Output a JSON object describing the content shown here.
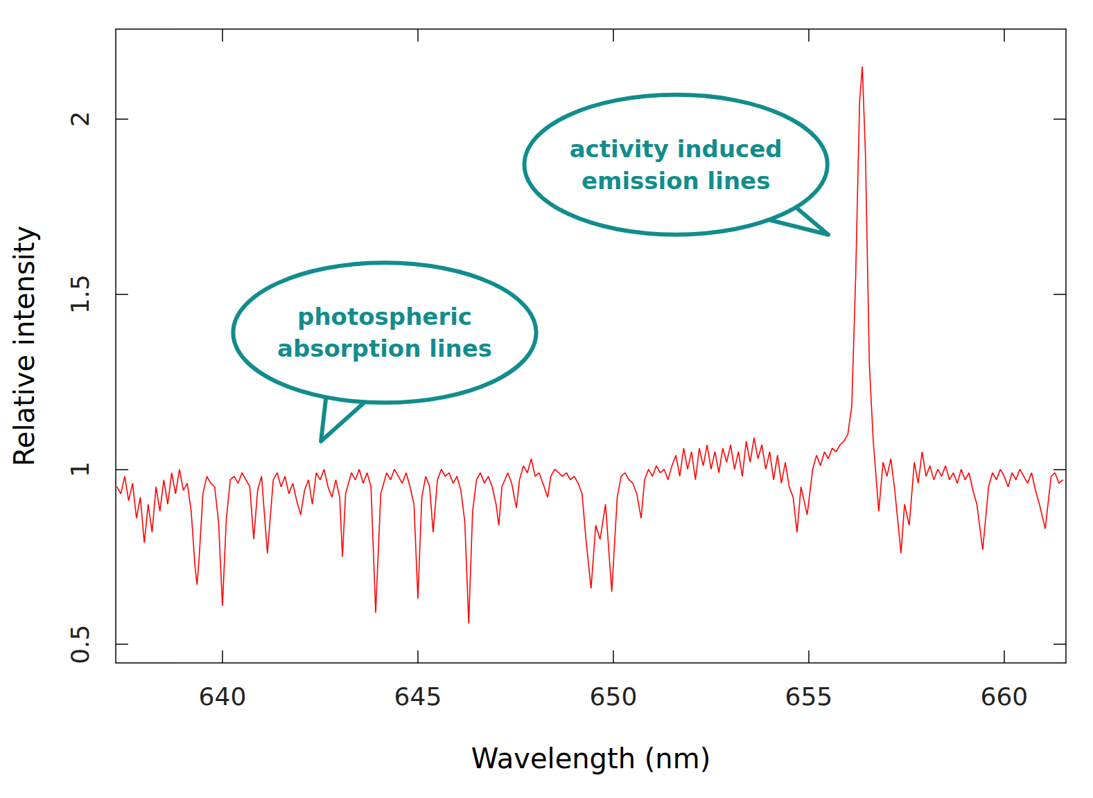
{
  "chart_data": {
    "type": "line",
    "xlabel": "Wavelength (nm)",
    "ylabel": "Relative intensity",
    "xlim": [
      637.27,
      661.58
    ],
    "xticks": [
      640,
      645,
      650,
      655,
      660
    ],
    "ylim": [
      0.447,
      2.257
    ],
    "yticks": [
      0.5,
      1,
      1.5,
      2
    ],
    "grid": false,
    "x": [
      637.3,
      637.4,
      637.5,
      637.6,
      637.7,
      637.8,
      637.9,
      638.0,
      638.1,
      638.2,
      638.3,
      638.4,
      638.5,
      638.6,
      638.7,
      638.8,
      638.9,
      639.0,
      639.1,
      639.2,
      639.3,
      639.35,
      639.4,
      639.5,
      639.6,
      639.7,
      639.8,
      639.9,
      640.0,
      640.1,
      640.2,
      640.3,
      640.4,
      640.5,
      640.6,
      640.7,
      640.8,
      640.9,
      641.0,
      641.15,
      641.3,
      641.4,
      641.5,
      641.6,
      641.7,
      641.8,
      641.9,
      642.0,
      642.1,
      642.2,
      642.3,
      642.4,
      642.5,
      642.6,
      642.7,
      642.8,
      642.9,
      643.0,
      643.07,
      643.15,
      643.3,
      643.4,
      643.5,
      643.6,
      643.7,
      643.8,
      643.92,
      644.05,
      644.2,
      644.3,
      644.4,
      644.5,
      644.6,
      644.7,
      644.8,
      644.9,
      645.0,
      645.1,
      645.2,
      645.3,
      645.39,
      645.5,
      645.6,
      645.7,
      645.8,
      645.9,
      646.0,
      646.1,
      646.2,
      646.3,
      646.4,
      646.5,
      646.6,
      646.7,
      646.8,
      646.9,
      647.0,
      647.07,
      647.15,
      647.3,
      647.4,
      647.52,
      647.6,
      647.7,
      647.8,
      647.9,
      648.0,
      648.1,
      648.2,
      648.32,
      648.4,
      648.5,
      648.6,
      648.7,
      648.8,
      648.9,
      649.0,
      649.1,
      649.2,
      649.3,
      649.43,
      649.55,
      649.66,
      649.8,
      649.96,
      650.1,
      650.2,
      650.3,
      650.4,
      650.5,
      650.6,
      650.71,
      650.8,
      650.9,
      651.0,
      651.1,
      651.2,
      651.3,
      651.4,
      651.5,
      651.6,
      651.7,
      651.8,
      651.9,
      652.0,
      652.1,
      652.2,
      652.3,
      652.4,
      652.5,
      652.6,
      652.7,
      652.8,
      652.9,
      653.0,
      653.1,
      653.2,
      653.3,
      653.4,
      653.5,
      653.6,
      653.7,
      653.8,
      653.9,
      654.0,
      654.1,
      654.2,
      654.3,
      654.4,
      654.5,
      654.6,
      654.7,
      654.8,
      654.96,
      655.1,
      655.2,
      655.3,
      655.4,
      655.5,
      655.6,
      655.7,
      655.8,
      655.9,
      656.0,
      656.1,
      656.2,
      656.3,
      656.37,
      656.45,
      656.55,
      656.65,
      656.79,
      656.9,
      657.0,
      657.1,
      657.2,
      657.36,
      657.45,
      657.57,
      657.7,
      657.8,
      657.9,
      658.0,
      658.1,
      658.2,
      658.3,
      658.4,
      658.5,
      658.6,
      658.7,
      658.8,
      658.9,
      659.0,
      659.1,
      659.2,
      659.3,
      659.45,
      659.6,
      659.7,
      659.8,
      659.9,
      660.0,
      660.1,
      660.2,
      660.3,
      660.4,
      660.5,
      660.6,
      660.7,
      660.8,
      660.9,
      661.05,
      661.2,
      661.3,
      661.4,
      661.5
    ],
    "series": [
      {
        "color": "#ff0000",
        "values": [
          0.95,
          0.93,
          0.98,
          0.91,
          0.96,
          0.86,
          0.92,
          0.79,
          0.9,
          0.82,
          0.95,
          0.88,
          0.97,
          0.9,
          0.99,
          0.93,
          1.0,
          0.94,
          0.96,
          0.88,
          0.72,
          0.67,
          0.74,
          0.93,
          0.98,
          0.96,
          0.95,
          0.85,
          0.61,
          0.86,
          0.97,
          0.98,
          0.96,
          0.99,
          0.97,
          0.95,
          0.8,
          0.94,
          0.98,
          0.76,
          0.97,
          0.99,
          0.95,
          0.98,
          0.93,
          0.96,
          0.91,
          0.87,
          0.94,
          0.97,
          0.9,
          0.99,
          0.97,
          1.0,
          0.95,
          0.92,
          0.97,
          0.92,
          0.75,
          0.93,
          0.99,
          0.97,
          1.0,
          0.96,
          0.99,
          0.95,
          0.59,
          0.93,
          0.99,
          0.97,
          1.0,
          0.98,
          0.96,
          0.99,
          0.95,
          0.9,
          0.63,
          0.92,
          0.98,
          0.95,
          0.82,
          0.97,
          1.0,
          0.98,
          0.99,
          0.96,
          0.98,
          0.94,
          0.85,
          0.56,
          0.88,
          0.97,
          0.99,
          0.96,
          0.98,
          0.95,
          0.9,
          0.84,
          0.95,
          0.99,
          0.96,
          0.89,
          0.97,
          1.01,
          0.99,
          1.03,
          0.98,
          0.99,
          0.96,
          0.92,
          0.98,
          1.0,
          0.99,
          0.98,
          0.99,
          0.97,
          0.98,
          0.96,
          0.93,
          0.8,
          0.66,
          0.84,
          0.8,
          0.9,
          0.65,
          0.92,
          0.98,
          0.99,
          0.97,
          0.96,
          0.93,
          0.86,
          0.97,
          1.0,
          0.98,
          1.01,
          0.99,
          1.0,
          0.97,
          1.01,
          1.04,
          0.98,
          1.06,
          1.0,
          1.05,
          0.97,
          1.06,
          1.01,
          1.07,
          1.0,
          1.05,
          0.99,
          1.06,
          1.02,
          1.07,
          1.0,
          1.05,
          0.98,
          1.08,
          1.02,
          1.09,
          1.03,
          1.07,
          1.0,
          1.05,
          0.97,
          1.04,
          0.96,
          1.02,
          0.95,
          0.92,
          0.82,
          0.95,
          0.87,
          1.0,
          1.04,
          1.01,
          1.05,
          1.03,
          1.06,
          1.05,
          1.07,
          1.08,
          1.1,
          1.18,
          1.55,
          2.05,
          2.15,
          1.9,
          1.3,
          1.08,
          0.88,
          1.02,
          0.98,
          1.03,
          0.94,
          0.76,
          0.9,
          0.84,
          1.02,
          0.96,
          1.05,
          0.98,
          1.01,
          0.97,
          1.0,
          0.98,
          1.01,
          0.97,
          0.99,
          0.96,
          1.0,
          0.97,
          0.99,
          0.94,
          0.9,
          0.77,
          0.95,
          0.99,
          0.97,
          1.0,
          0.98,
          0.95,
          0.99,
          0.97,
          1.0,
          0.98,
          0.96,
          0.99,
          0.94,
          0.9,
          0.83,
          0.98,
          0.99,
          0.96,
          0.97
        ]
      }
    ],
    "annotations": [
      {
        "text": [
          "photospheric",
          "absorption lines"
        ],
        "x": 644.15,
        "y": 1.39,
        "target": [
          642.52,
          1.08
        ]
      },
      {
        "text": [
          "activity induced",
          "emission lines"
        ],
        "x": 651.6,
        "y": 1.87,
        "target": [
          655.5,
          1.67
        ]
      }
    ]
  }
}
